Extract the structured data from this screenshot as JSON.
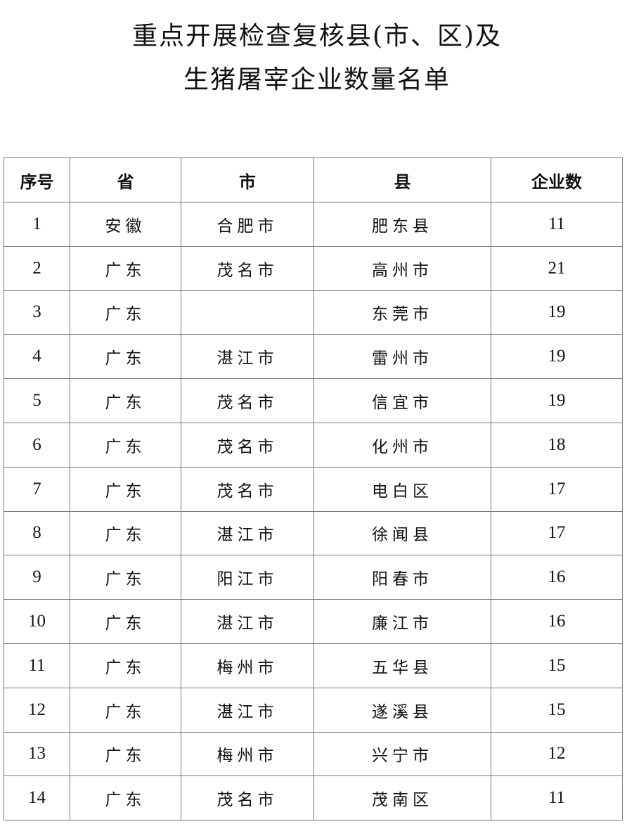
{
  "title": {
    "line1": "重点开展检查复核县(市、区)及",
    "line2": "生猪屠宰企业数量名单"
  },
  "table": {
    "headers": [
      "序号",
      "省",
      "市",
      "县",
      "企业数"
    ],
    "rows": [
      [
        "1",
        "安徽",
        "合肥市",
        "肥东县",
        "11"
      ],
      [
        "2",
        "广东",
        "茂名市",
        "高州市",
        "21"
      ],
      [
        "3",
        "广东",
        "",
        "东莞市",
        "19"
      ],
      [
        "4",
        "广东",
        "湛江市",
        "雷州市",
        "19"
      ],
      [
        "5",
        "广东",
        "茂名市",
        "信宜市",
        "19"
      ],
      [
        "6",
        "广东",
        "茂名市",
        "化州市",
        "18"
      ],
      [
        "7",
        "广东",
        "茂名市",
        "电白区",
        "17"
      ],
      [
        "8",
        "广东",
        "湛江市",
        "徐闻县",
        "17"
      ],
      [
        "9",
        "广东",
        "阳江市",
        "阳春市",
        "16"
      ],
      [
        "10",
        "广东",
        "湛江市",
        "廉江市",
        "16"
      ],
      [
        "11",
        "广东",
        "梅州市",
        "五华县",
        "15"
      ],
      [
        "12",
        "广东",
        "湛江市",
        "遂溪县",
        "15"
      ],
      [
        "13",
        "广东",
        "梅州市",
        "兴宁市",
        "12"
      ],
      [
        "14",
        "广东",
        "茂名市",
        "茂南区",
        "11"
      ]
    ]
  }
}
